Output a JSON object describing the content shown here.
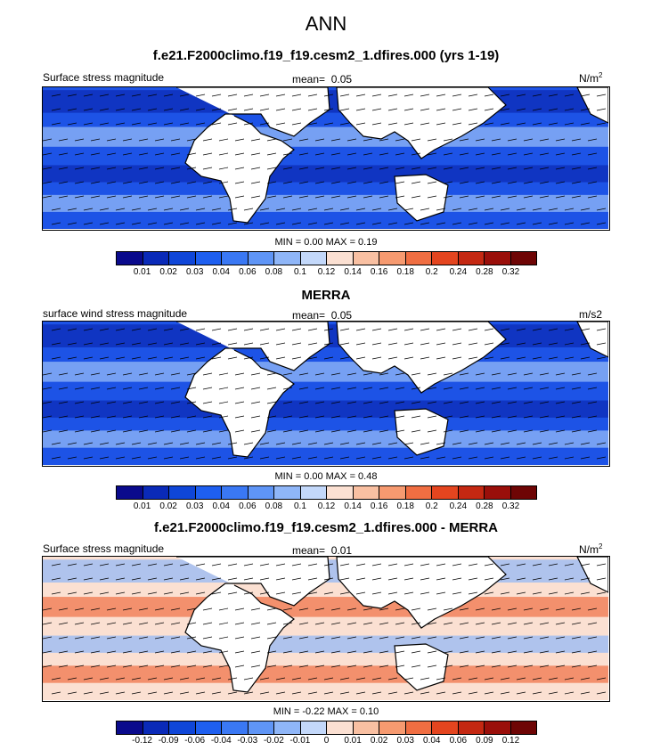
{
  "main_title": "ANN",
  "panels": [
    {
      "title": "f.e21.F2000climo.f19_f19.cesm2_1.dfires.000 (yrs 1-19)",
      "left_label": "Surface stress magnitude",
      "mean_label": "mean=",
      "mean_value": "0.05",
      "units_base": "N/m",
      "units_sup": "2",
      "minmax_text": "MIN =  0.00 MAX =  0.19",
      "colorbar_ticks": [
        "0.01",
        "0.02",
        "0.03",
        "0.04",
        "0.06",
        "0.08",
        "0.1",
        "0.12",
        "0.14",
        "0.16",
        "0.18",
        "0.2",
        "0.24",
        "0.28",
        "0.32"
      ],
      "colorbar_colors": [
        "#0a0a8c",
        "#0a2ab8",
        "#0f46d8",
        "#1e5ff0",
        "#3a78f4",
        "#5f95f6",
        "#8fb6f8",
        "#c3d8fa",
        "#fbe0d2",
        "#f9c0a2",
        "#f69a70",
        "#f06e42",
        "#e4451f",
        "#c42812",
        "#9a0f0a",
        "#6e0505"
      ],
      "field_colors": {
        "background": "#1d53e6",
        "high": "#9cc2f8",
        "low": "#0b2ab2"
      }
    },
    {
      "title": "MERRA",
      "left_label": "surface wind stress magnitude",
      "mean_label": "mean=",
      "mean_value": "0.05",
      "units_base": "m/s2",
      "units_sup": "",
      "minmax_text": "MIN =  0.00 MAX =  0.48",
      "colorbar_ticks": [
        "0.01",
        "0.02",
        "0.03",
        "0.04",
        "0.06",
        "0.08",
        "0.1",
        "0.12",
        "0.14",
        "0.16",
        "0.18",
        "0.2",
        "0.24",
        "0.28",
        "0.32"
      ],
      "colorbar_colors": [
        "#0a0a8c",
        "#0a2ab8",
        "#0f46d8",
        "#1e5ff0",
        "#3a78f4",
        "#5f95f6",
        "#8fb6f8",
        "#c3d8fa",
        "#fbe0d2",
        "#f9c0a2",
        "#f69a70",
        "#f06e42",
        "#e4451f",
        "#c42812",
        "#9a0f0a",
        "#6e0505"
      ],
      "field_colors": {
        "background": "#1d53e6",
        "high": "#9cc2f8",
        "low": "#0b2ab2"
      }
    },
    {
      "title": "f.e21.F2000climo.f19_f19.cesm2_1.dfires.000 - MERRA",
      "left_label": "Surface stress magnitude",
      "mean_label": "mean=",
      "mean_value": "0.01",
      "units_base": "N/m",
      "units_sup": "2",
      "minmax_text": "MIN = -0.22 MAX =  0.10",
      "colorbar_ticks": [
        "-0.12",
        "-0.09",
        "-0.06",
        "-0.04",
        "-0.03",
        "-0.02",
        "-0.01",
        "0",
        "0.01",
        "0.02",
        "0.03",
        "0.04",
        "0.06",
        "0.09",
        "0.12"
      ],
      "colorbar_colors": [
        "#0a0a8c",
        "#0a2ab8",
        "#0f46d8",
        "#1e5ff0",
        "#3a78f4",
        "#5f95f6",
        "#8fb6f8",
        "#c3d8fa",
        "#fbe0d2",
        "#f9c0a2",
        "#f69a70",
        "#f06e42",
        "#e4451f",
        "#c42812",
        "#9a0f0a",
        "#6e0505"
      ],
      "field_colors": {
        "background": "#fbe0d2",
        "high": "#f06e42",
        "low": "#8fb6f8"
      }
    }
  ],
  "chart_data": [
    {
      "type": "heatmap",
      "title": "f.e21.F2000climo.f19_f19.cesm2_1.dfires.000 (yrs 1-19)",
      "variable": "Surface stress magnitude",
      "units": "N/m2",
      "mean": 0.05,
      "min": 0.0,
      "max": 0.19,
      "levels": [
        0.01,
        0.02,
        0.03,
        0.04,
        0.06,
        0.08,
        0.1,
        0.12,
        0.14,
        0.16,
        0.18,
        0.2,
        0.24,
        0.28,
        0.32
      ],
      "overlay": "wind stress vectors"
    },
    {
      "type": "heatmap",
      "title": "MERRA",
      "variable": "surface wind stress magnitude",
      "units": "m/s2",
      "mean": 0.05,
      "min": 0.0,
      "max": 0.48,
      "levels": [
        0.01,
        0.02,
        0.03,
        0.04,
        0.06,
        0.08,
        0.1,
        0.12,
        0.14,
        0.16,
        0.18,
        0.2,
        0.24,
        0.28,
        0.32
      ],
      "overlay": "wind stress vectors"
    },
    {
      "type": "heatmap",
      "title": "f.e21.F2000climo.f19_f19.cesm2_1.dfires.000 - MERRA",
      "variable": "Surface stress magnitude",
      "units": "N/m2",
      "mean": 0.01,
      "min": -0.22,
      "max": 0.1,
      "levels": [
        -0.12,
        -0.09,
        -0.06,
        -0.04,
        -0.03,
        -0.02,
        -0.01,
        0,
        0.01,
        0.02,
        0.03,
        0.04,
        0.06,
        0.09,
        0.12
      ],
      "overlay": "wind stress difference vectors"
    }
  ]
}
